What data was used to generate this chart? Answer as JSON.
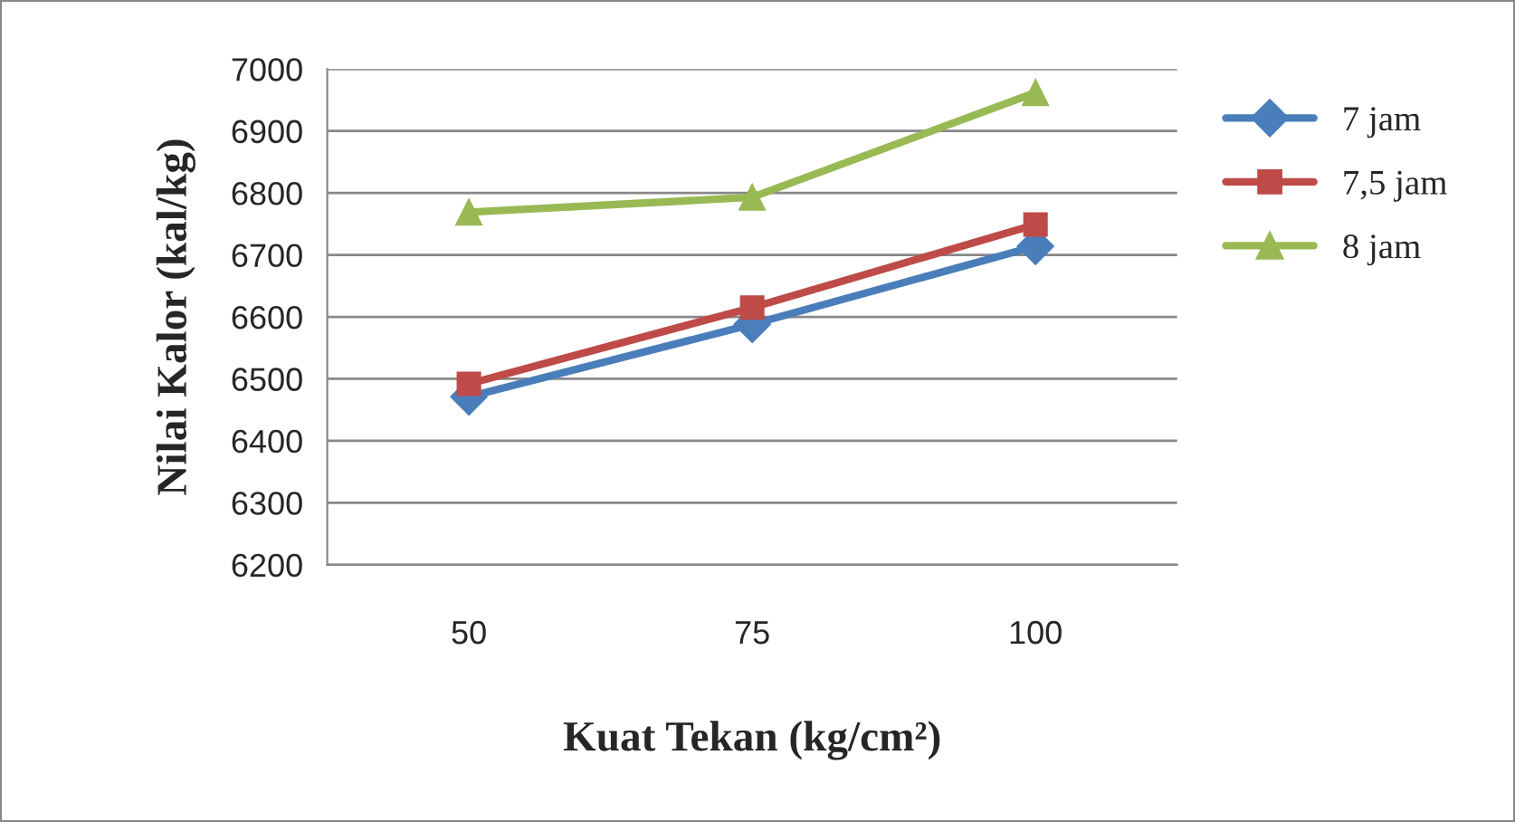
{
  "chart_data": {
    "type": "line",
    "xlabel": "Kuat Tekan (kg/cm²)",
    "ylabel": "Nilai Kalor (kal/kg)",
    "categories": [
      "50",
      "75",
      "100"
    ],
    "series": [
      {
        "name": "7 jam",
        "color": "#4a7ebb",
        "marker": "diamond",
        "values": [
          6471,
          6588,
          6714
        ]
      },
      {
        "name": "7,5 jam",
        "color": "#be4b48",
        "marker": "square",
        "values": [
          6492,
          6615,
          6749
        ]
      },
      {
        "name": "8 jam",
        "color": "#98b954",
        "marker": "triangle",
        "values": [
          6769,
          6793,
          6962
        ]
      }
    ],
    "ylim": [
      6200,
      7000
    ],
    "yticks": [
      6200,
      6300,
      6400,
      6500,
      6600,
      6700,
      6800,
      6900,
      7000
    ],
    "grid": "y",
    "legend": "right"
  }
}
